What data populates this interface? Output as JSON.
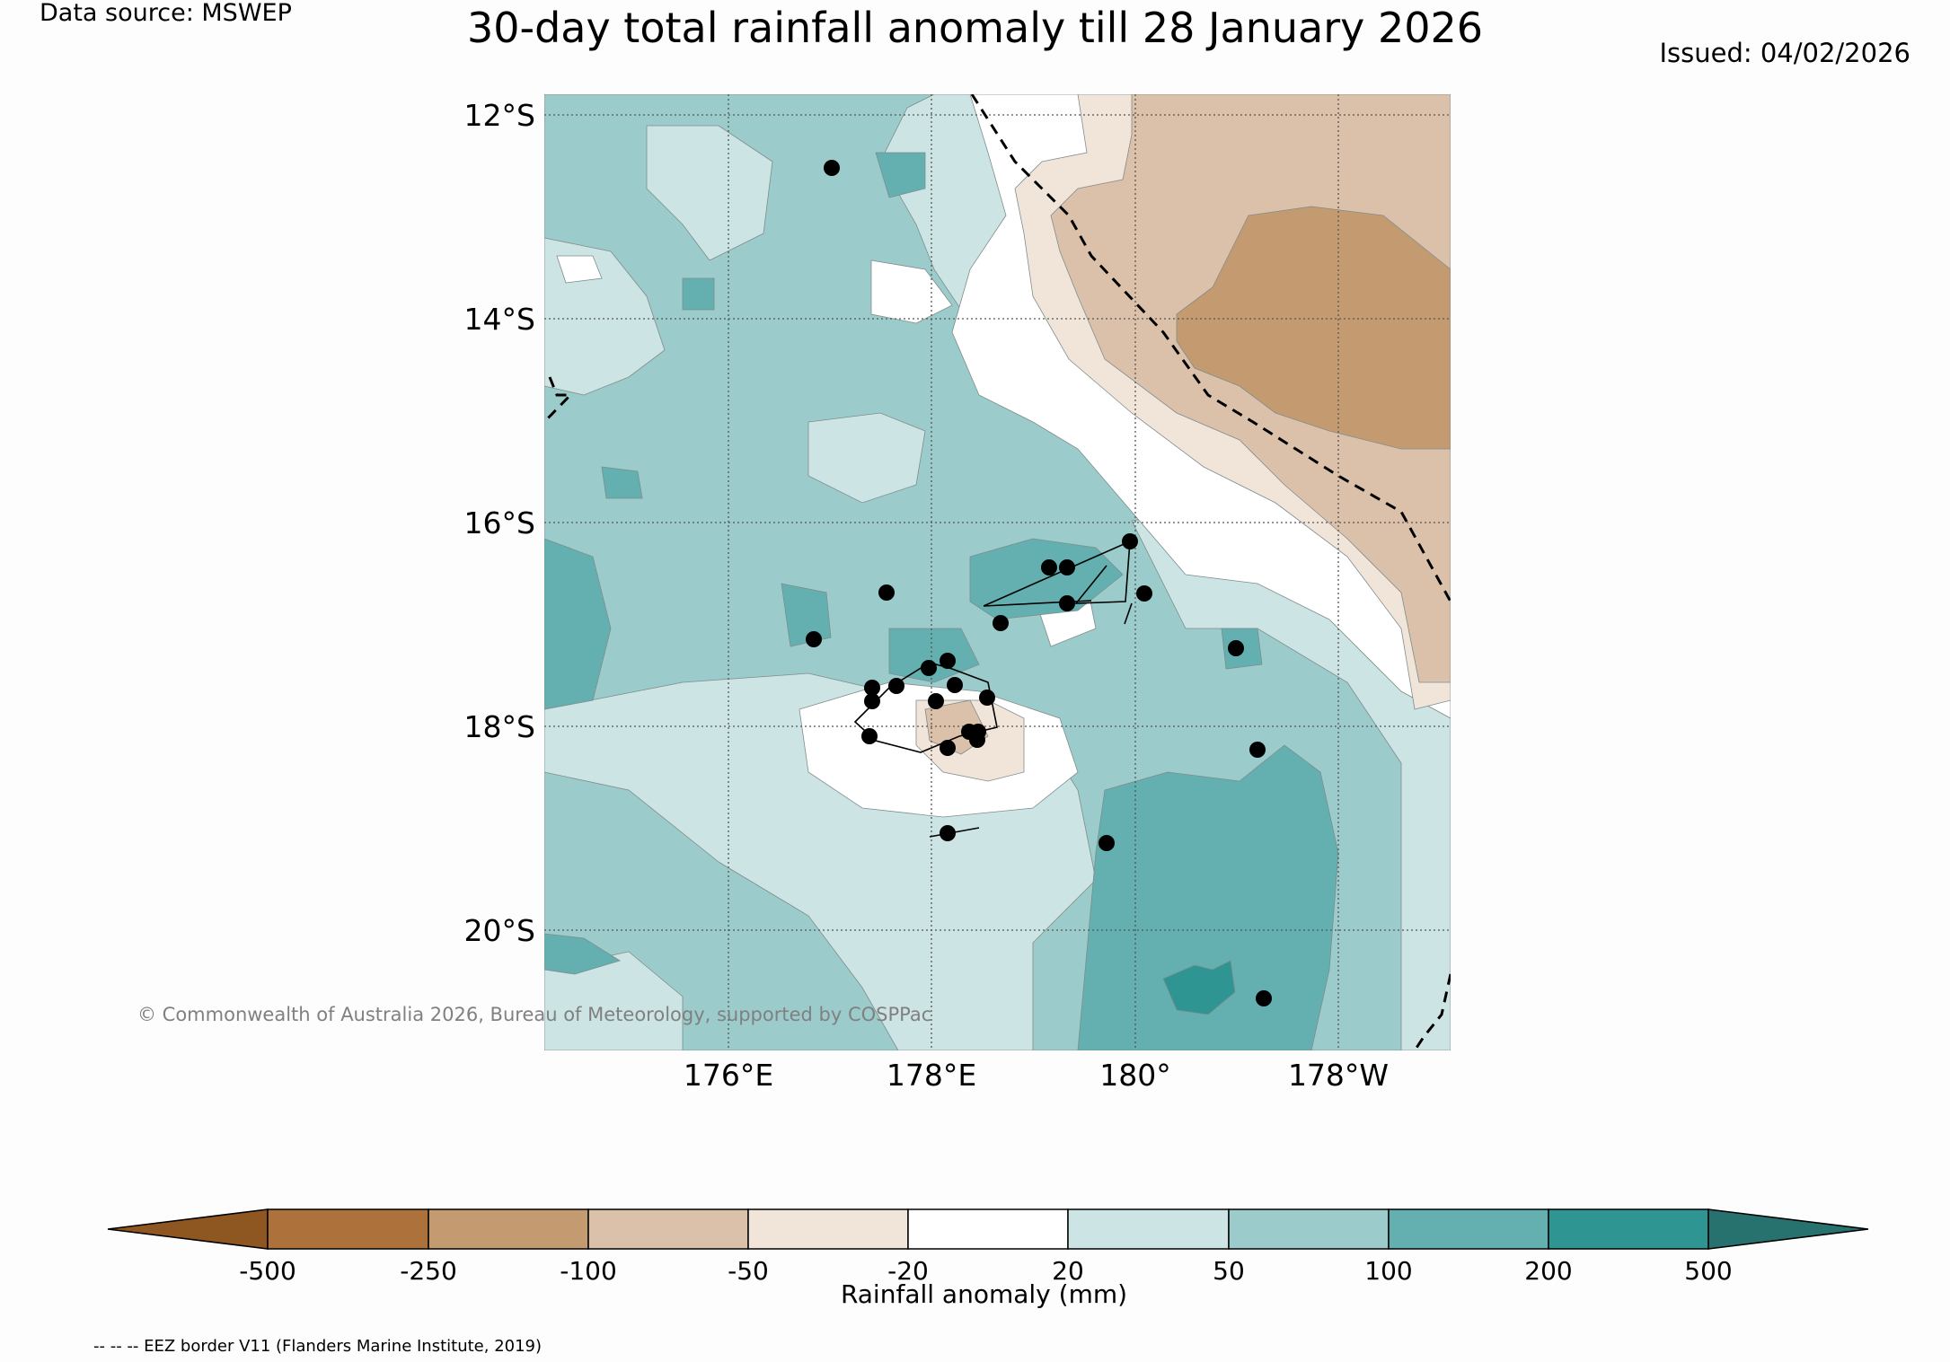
{
  "header": {
    "data_source": "Data source: MSWEP",
    "title": "30-day total rainfall anomaly till 28 January 2026",
    "issued": "Issued: 04/02/2026"
  },
  "map": {
    "lat_labels": [
      "12°S",
      "14°S",
      "16°S",
      "18°S",
      "20°S"
    ],
    "lon_labels": [
      "176°E",
      "178°E",
      "180°",
      "178°W"
    ],
    "copyright": "© Commonwealth of Australia 2026, Bureau of Meteorology, supported by COSPPac",
    "region_fills": [
      {
        "name": "base-50-100mm",
        "color": "#9ccbcb"
      },
      {
        "name": "white-20mm",
        "color": "#ffffff"
      },
      {
        "name": "light-20-50mm",
        "color": "#cce4e3"
      },
      {
        "name": "light-brown-minus20-50",
        "color": "#f1e5da"
      },
      {
        "name": "tan-minus50-100",
        "color": "#dbc1a9"
      },
      {
        "name": "brown-minus100-250",
        "color": "#c49b71"
      },
      {
        "name": "teal-100-200",
        "color": "#64b0b0"
      },
      {
        "name": "dark-teal-200-500",
        "color": "#2f9592"
      }
    ]
  },
  "colorbar": {
    "segments": [
      {
        "label": "-500",
        "color": "#8e5620"
      },
      {
        "label": "-250",
        "color": "#ad723b"
      },
      {
        "label": "-100",
        "color": "#c49b71"
      },
      {
        "label": "-50",
        "color": "#dbc1a9"
      },
      {
        "label": "-20",
        "color": "#f1e5da"
      },
      {
        "label": "20",
        "color": "#ffffff"
      },
      {
        "label": "50",
        "color": "#cce4e3"
      },
      {
        "label": "100",
        "color": "#9ccbcb"
      },
      {
        "label": "200",
        "color": "#64b0b0"
      },
      {
        "label": "500",
        "color": "#2f9592"
      },
      {
        "label": "",
        "color": "#27716f"
      }
    ],
    "title": "Rainfall anomaly (mm)"
  },
  "footnote": "-- -- -- EEZ border V11 (Flanders Marine Institute, 2019)"
}
